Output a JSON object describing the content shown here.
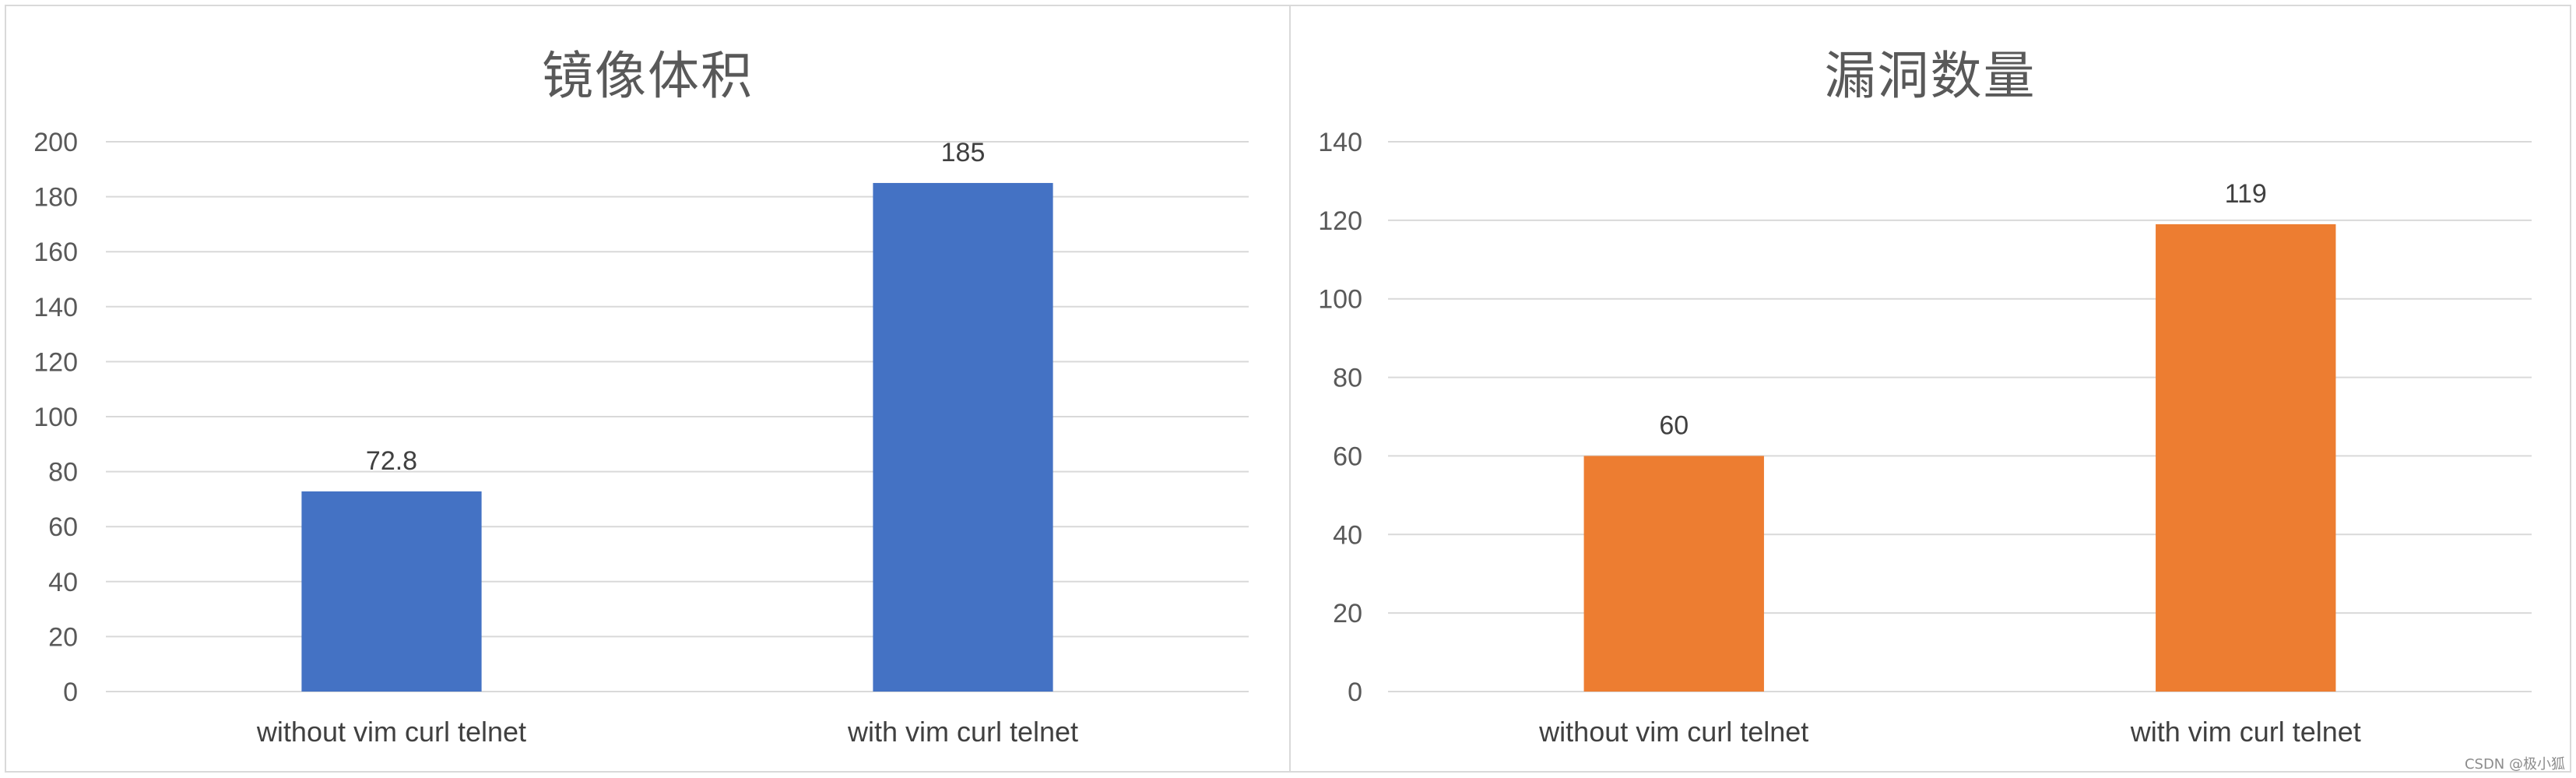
{
  "chart_data": [
    {
      "type": "bar",
      "title": "镜像体积",
      "categories": [
        "without vim curl telnet",
        "with vim curl telnet"
      ],
      "values": [
        72.8,
        185
      ],
      "data_labels": [
        "72.8",
        "185"
      ],
      "ylim": [
        0,
        200
      ],
      "yticks": [
        0,
        20,
        40,
        60,
        80,
        100,
        120,
        140,
        160,
        180,
        200
      ],
      "grid": true,
      "color": "#4472C4"
    },
    {
      "type": "bar",
      "title": "漏洞数量",
      "categories": [
        "without vim curl telnet",
        "with vim curl telnet"
      ],
      "values": [
        60,
        119
      ],
      "data_labels": [
        "60",
        "119"
      ],
      "ylim": [
        0,
        140
      ],
      "yticks": [
        0,
        20,
        40,
        60,
        80,
        100,
        120,
        140
      ],
      "grid": true,
      "color": "#ED7D31"
    }
  ],
  "watermark": "CSDN @极小狐"
}
